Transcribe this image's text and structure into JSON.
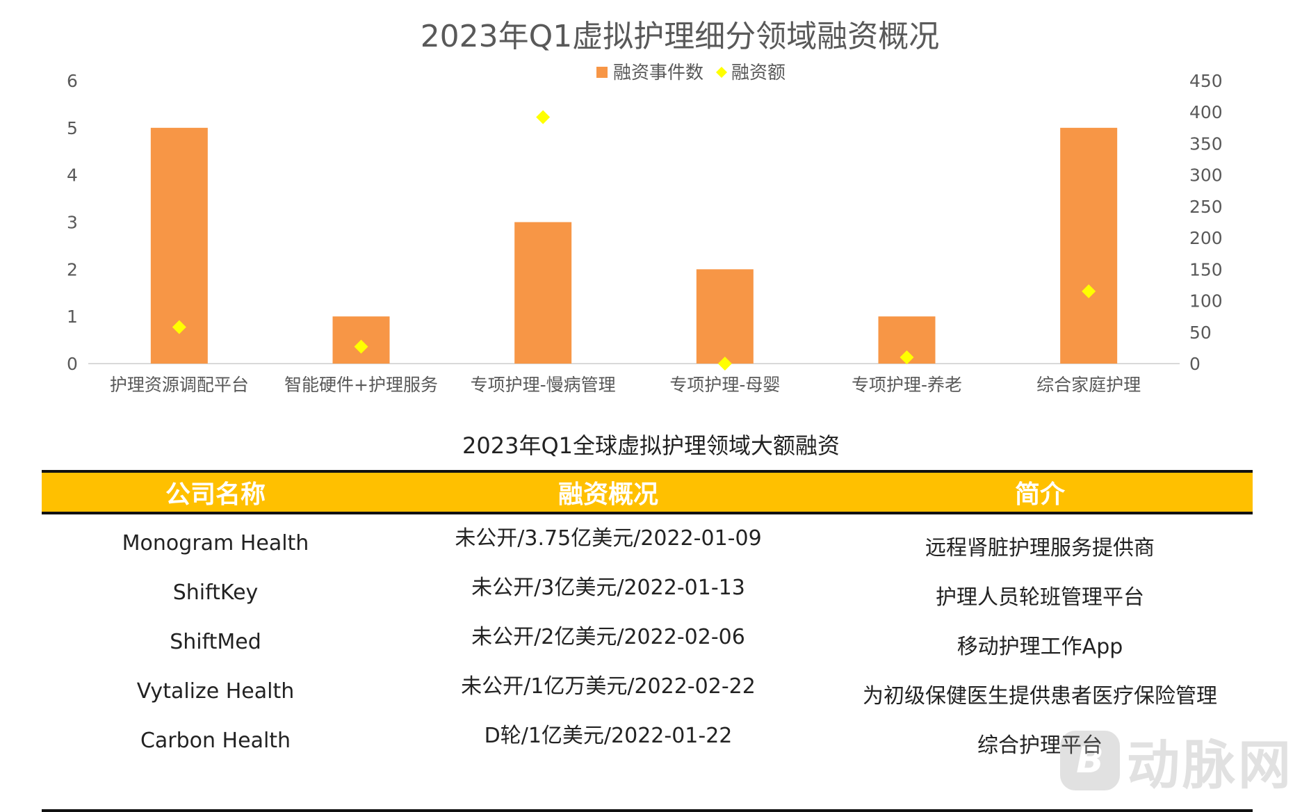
{
  "chart_data": {
    "type": "bar",
    "title": "2023年Q1虚拟护理细分领域融资概况",
    "categories": [
      "护理资源调配平台",
      "智能硬件+护理服务",
      "专项护理-慢病管理",
      "专项护理-母婴",
      "专项护理-养老",
      "综合家庭护理"
    ],
    "series": [
      {
        "name": "融资事件数",
        "type": "bar",
        "axis": "left",
        "color": "#F79646",
        "values": [
          5,
          1,
          3,
          2,
          1,
          5
        ]
      },
      {
        "name": "融资额",
        "type": "scatter",
        "marker": "diamond",
        "axis": "right",
        "color": "#FFFF00",
        "values": [
          58,
          27,
          392,
          0,
          10,
          115
        ]
      }
    ],
    "y_left": {
      "min": 0,
      "max": 6,
      "ticks": [
        "0",
        "1",
        "2",
        "3",
        "4",
        "5",
        "6"
      ]
    },
    "y_right": {
      "min": 0,
      "max": 450,
      "ticks": [
        "0",
        "50",
        "100",
        "150",
        "200",
        "250",
        "300",
        "350",
        "400",
        "450"
      ]
    },
    "legend": "top-center",
    "grid": false
  },
  "table": {
    "title": "2023年Q1全球虚拟护理领域大额融资",
    "header_color": "#FFC000",
    "headers": [
      "公司名称",
      "融资概况",
      "简介"
    ],
    "rows": [
      [
        "Monogram Health",
        "未公开/3.75亿美元/2022-01-09",
        "远程肾脏护理服务提供商"
      ],
      [
        "ShiftKey",
        "未公开/3亿美元/2022-01-13",
        "护理人员轮班管理平台"
      ],
      [
        "ShiftMed",
        "未公开/2亿美元/2022-02-06",
        "移动护理工作App"
      ],
      [
        "Vytalize Health",
        "未公开/1亿万美元/2022-02-22",
        "为初级保健医生提供患者医疗保险管理"
      ],
      [
        "Carbon Health",
        "D轮/1亿美元/2022-01-22",
        "综合护理平台"
      ]
    ]
  },
  "watermark": {
    "logo_letter": "B",
    "text": "动脉网"
  }
}
